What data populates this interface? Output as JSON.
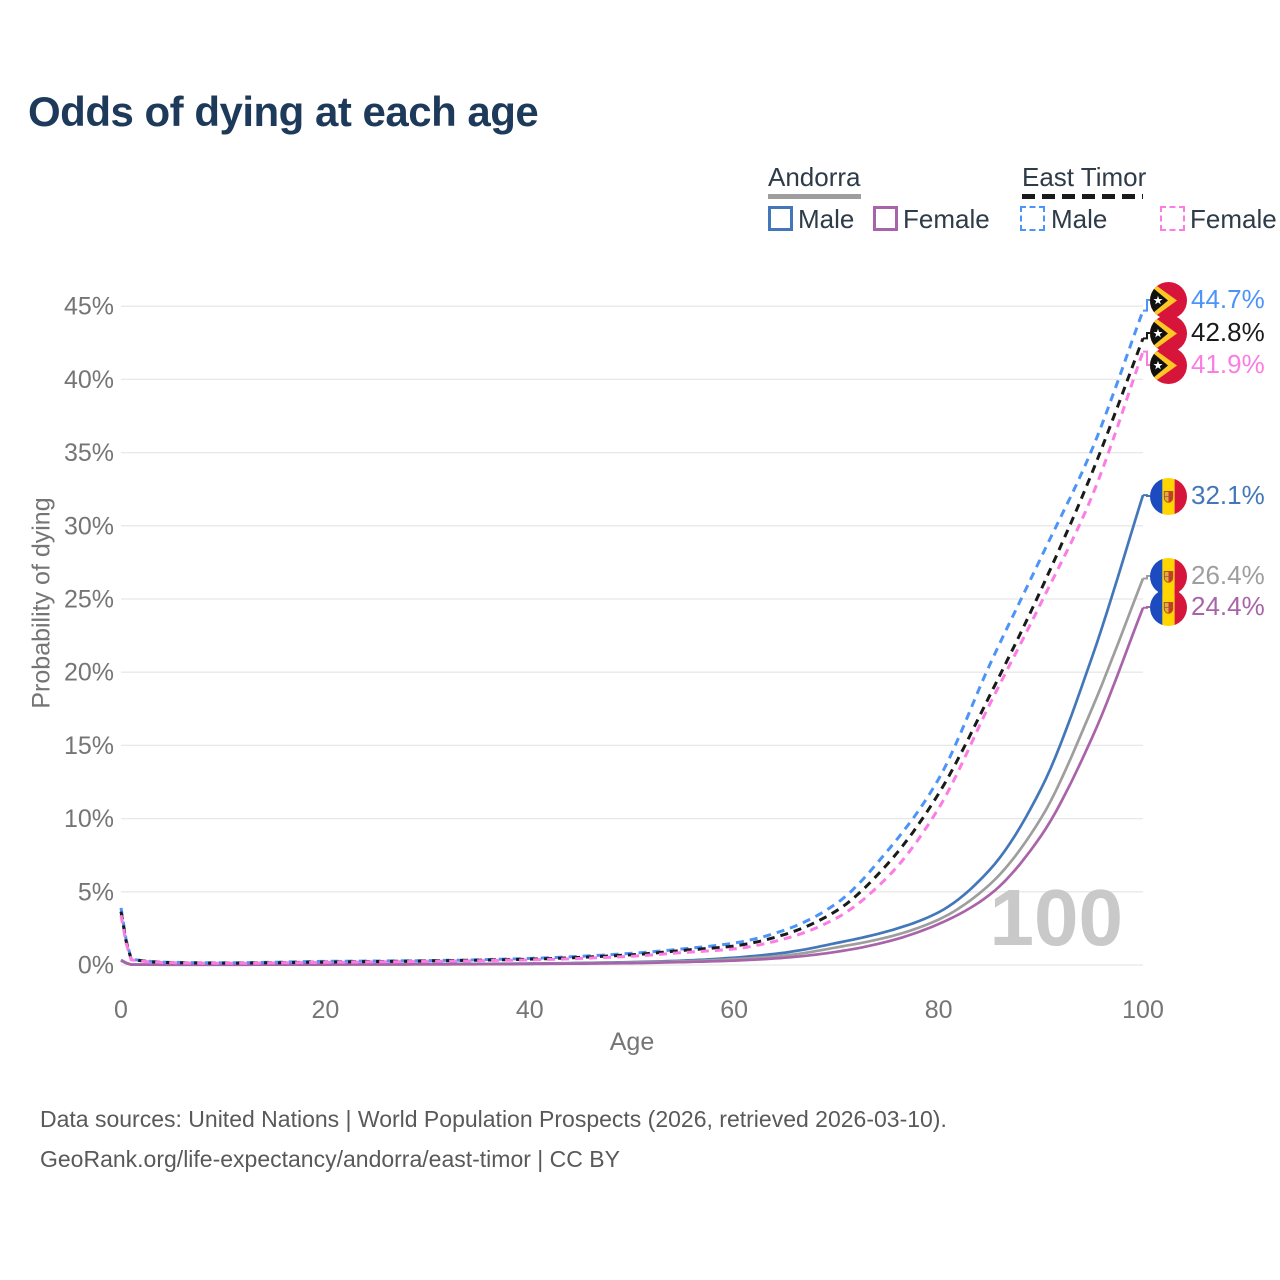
{
  "title": "Odds of dying at each age",
  "legend": {
    "groups": [
      {
        "label": "Andorra",
        "items": [
          {
            "label": "Male"
          },
          {
            "label": "Female"
          }
        ]
      },
      {
        "label": "East Timor",
        "items": [
          {
            "label": "Male"
          },
          {
            "label": "Female"
          }
        ]
      }
    ]
  },
  "watermark": "100",
  "caption": {
    "line1": "Data sources: United Nations | World Population Prospects (2026, retrieved 2026-03-10).",
    "line2": "GeoRank.org/life-expectancy/andorra/east-timor | CC BY"
  },
  "colors": {
    "andorra_male": "#4377b9",
    "andorra_female": "#a964a9",
    "andorra_all": "#9e9e9e",
    "east_timor_male": "#4d94f9",
    "east_timor_female": "#fb7de4",
    "east_timor_all": "#1a1a1a",
    "title_text": "#1e3a5a",
    "axis_text": "#757575",
    "gridline": "#e8e8e8",
    "watermark_text": "#c9c9c9",
    "caption_text": "#595959",
    "legend_text": "#2e3b49"
  },
  "chart_data": {
    "type": "line",
    "title": "Odds of dying at each age",
    "xlabel": "Age",
    "ylabel": "Probability of dying",
    "xlim": [
      0,
      100
    ],
    "ylim": [
      0,
      45
    ],
    "x_ticks": [
      0,
      20,
      40,
      60,
      80,
      100
    ],
    "y_ticks": [
      0,
      5,
      10,
      15,
      20,
      25,
      30,
      35,
      40,
      45
    ],
    "y_tick_suffix": "%",
    "grid": true,
    "legend_position": "top-right",
    "x": [
      0,
      1,
      5,
      10,
      20,
      30,
      40,
      50,
      55,
      60,
      65,
      70,
      75,
      80,
      85,
      90,
      95,
      100
    ],
    "series": [
      {
        "name": "East Timor Male",
        "country": "East Timor",
        "sex": "Male",
        "line": "dashed",
        "color_key": "east_timor_male",
        "flag": "east-timor",
        "end_label": "44.7%",
        "end_value": 44.7,
        "values": [
          3.9,
          0.4,
          0.18,
          0.15,
          0.25,
          0.3,
          0.45,
          0.8,
          1.1,
          1.5,
          2.4,
          4.2,
          7.8,
          12.7,
          20.5,
          27.8,
          35.2,
          44.7
        ]
      },
      {
        "name": "East Timor Both sexes",
        "country": "East Timor",
        "sex": "Both",
        "line": "dashed",
        "color_key": "east_timor_all",
        "flag": "east-timor",
        "end_label": "42.8%",
        "end_value": 42.8,
        "values": [
          3.65,
          0.38,
          0.16,
          0.13,
          0.2,
          0.28,
          0.4,
          0.7,
          1.0,
          1.3,
          2.1,
          3.7,
          6.9,
          11.7,
          18.4,
          25.6,
          33.6,
          42.8
        ]
      },
      {
        "name": "East Timor Female",
        "country": "East Timor",
        "sex": "Female",
        "line": "dashed",
        "color_key": "east_timor_female",
        "flag": "east-timor",
        "end_label": "41.9%",
        "end_value": 41.9,
        "values": [
          3.4,
          0.35,
          0.15,
          0.12,
          0.18,
          0.25,
          0.35,
          0.6,
          0.85,
          1.1,
          1.8,
          3.2,
          6.0,
          10.7,
          17.8,
          24.7,
          32.0,
          41.9
        ]
      },
      {
        "name": "Andorra Male",
        "country": "Andorra",
        "sex": "Male",
        "line": "solid",
        "color_key": "andorra_male",
        "flag": "andorra",
        "end_label": "32.1%",
        "end_value": 32.1,
        "values": [
          0.35,
          0.03,
          0.02,
          0.02,
          0.05,
          0.07,
          0.1,
          0.2,
          0.3,
          0.5,
          0.85,
          1.5,
          2.3,
          3.6,
          6.5,
          12.0,
          21.0,
          32.1
        ]
      },
      {
        "name": "Andorra Both sexes",
        "country": "Andorra",
        "sex": "Both",
        "line": "solid",
        "color_key": "andorra_all",
        "flag": "andorra",
        "end_label": "26.4%",
        "end_value": 26.4,
        "values": [
          0.32,
          0.03,
          0.018,
          0.018,
          0.04,
          0.055,
          0.085,
          0.17,
          0.25,
          0.4,
          0.65,
          1.2,
          1.9,
          3.1,
          5.5,
          10.0,
          17.5,
          26.4
        ]
      },
      {
        "name": "Andorra Female",
        "country": "Andorra",
        "sex": "Female",
        "line": "solid",
        "color_key": "andorra_female",
        "flag": "andorra",
        "end_label": "24.4%",
        "end_value": 24.4,
        "values": [
          0.3,
          0.03,
          0.015,
          0.015,
          0.03,
          0.04,
          0.07,
          0.13,
          0.2,
          0.3,
          0.5,
          0.9,
          1.6,
          2.8,
          4.8,
          8.8,
          15.5,
          24.4
        ]
      }
    ]
  }
}
